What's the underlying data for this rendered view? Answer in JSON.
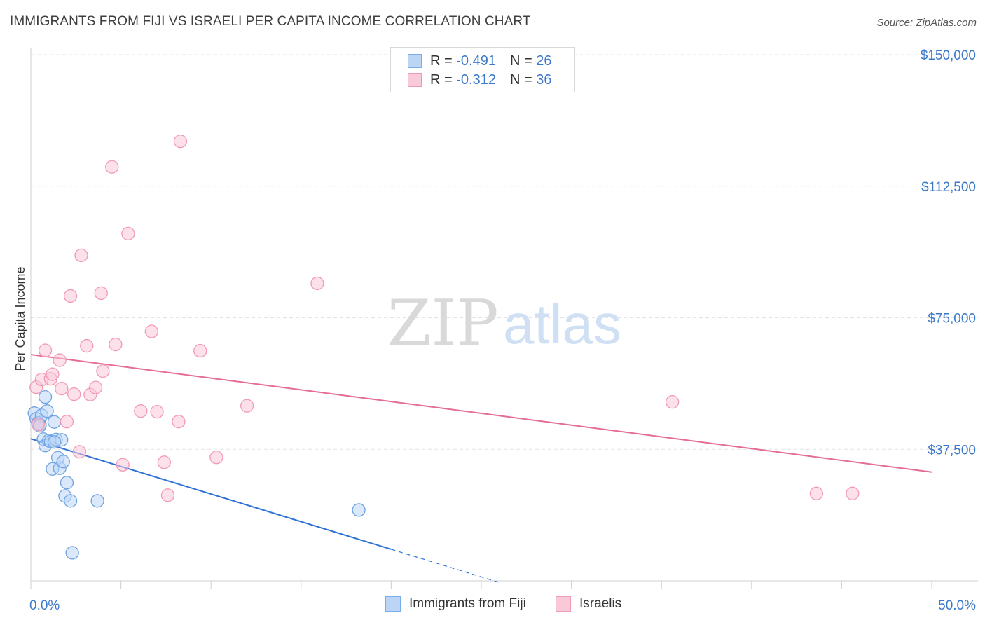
{
  "title": "IMMIGRANTS FROM FIJI VS ISRAELI PER CAPITA INCOME CORRELATION CHART",
  "source": "Source: ZipAtlas.com",
  "watermark": {
    "zip": "ZIP",
    "atlas": "atlas"
  },
  "legend": {
    "r_label": "R =",
    "n_label": "N =",
    "series": [
      {
        "r": "-0.491",
        "n": "26",
        "color": "#7aaee8",
        "fill": "#bcd5f5"
      },
      {
        "r": "-0.312",
        "n": "36",
        "color": "#f29ab5",
        "fill": "#f9c9d8"
      }
    ]
  },
  "bottom_legend": [
    "Immigrants from Fiji",
    "Israelis"
  ],
  "chart_data": {
    "type": "scatter",
    "ylabel": "Per Capita Income",
    "xlim": [
      0,
      50
    ],
    "ylim": [
      0,
      150000
    ],
    "x_tick_labels": [
      "0.0%",
      "50.0%"
    ],
    "y_ticks": [
      37500,
      75000,
      112500,
      150000
    ],
    "y_tick_labels": [
      "$37,500",
      "$75,000",
      "$112,500",
      "$150,000"
    ],
    "grid": true,
    "series": [
      {
        "name": "Immigrants from Fiji",
        "color": "#6fa3e3",
        "line_color": "#2f72d6",
        "points": [
          [
            0.2,
            47800
          ],
          [
            0.3,
            46200
          ],
          [
            0.4,
            45000
          ],
          [
            0.5,
            44600
          ],
          [
            0.6,
            47200
          ],
          [
            0.7,
            40400
          ],
          [
            0.8,
            38600
          ],
          [
            0.8,
            52400
          ],
          [
            0.9,
            48400
          ],
          [
            1.0,
            40000
          ],
          [
            1.1,
            39700
          ],
          [
            1.2,
            31900
          ],
          [
            1.3,
            45300
          ],
          [
            1.4,
            40300
          ],
          [
            1.5,
            35100
          ],
          [
            1.6,
            32100
          ],
          [
            1.7,
            40200
          ],
          [
            1.8,
            34000
          ],
          [
            1.9,
            24200
          ],
          [
            2.0,
            28000
          ],
          [
            2.2,
            22800
          ],
          [
            2.3,
            8000
          ],
          [
            3.7,
            22800
          ],
          [
            18.2,
            20200
          ],
          [
            0.5,
            44200
          ],
          [
            1.3,
            39600
          ]
        ],
        "trend": {
          "x0": 0,
          "y0": 40500,
          "x1": 20,
          "y1": 9000,
          "dash_to_x": 26
        }
      },
      {
        "name": "Israelis",
        "color": "#f29ab5",
        "line_color": "#e46c97",
        "points": [
          [
            0.3,
            55200
          ],
          [
            0.4,
            44600
          ],
          [
            0.6,
            57400
          ],
          [
            0.8,
            65700
          ],
          [
            1.1,
            57600
          ],
          [
            1.2,
            58900
          ],
          [
            1.6,
            62900
          ],
          [
            1.7,
            54800
          ],
          [
            2.0,
            45400
          ],
          [
            2.2,
            81200
          ],
          [
            2.4,
            53200
          ],
          [
            2.7,
            36800
          ],
          [
            2.8,
            92800
          ],
          [
            3.1,
            67000
          ],
          [
            3.3,
            53100
          ],
          [
            3.6,
            55100
          ],
          [
            3.9,
            82000
          ],
          [
            4.0,
            59800
          ],
          [
            4.5,
            118000
          ],
          [
            4.7,
            67400
          ],
          [
            5.1,
            33100
          ],
          [
            5.4,
            99000
          ],
          [
            6.1,
            48400
          ],
          [
            6.7,
            71100
          ],
          [
            7.0,
            48200
          ],
          [
            7.4,
            33800
          ],
          [
            7.6,
            24400
          ],
          [
            8.2,
            45400
          ],
          [
            8.3,
            125300
          ],
          [
            9.4,
            65600
          ],
          [
            10.3,
            35200
          ],
          [
            12.0,
            49900
          ],
          [
            15.9,
            84800
          ],
          [
            35.6,
            51000
          ],
          [
            43.6,
            24900
          ],
          [
            45.6,
            24900
          ]
        ],
        "trend": {
          "x0": 0,
          "y0": 64500,
          "x1": 50,
          "y1": 31000
        }
      }
    ]
  }
}
